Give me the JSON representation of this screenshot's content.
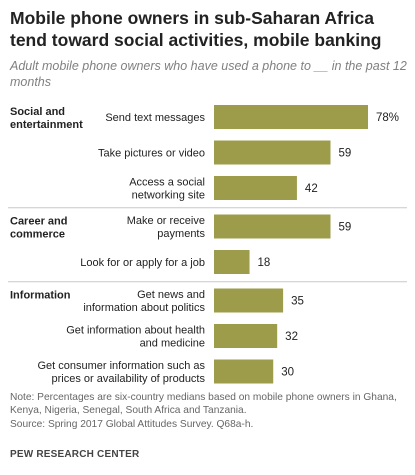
{
  "title": "Mobile phone owners in sub-Saharan Africa tend toward social activities, mobile banking",
  "subtitle": "Adult mobile phone owners who have used a phone to __ in the past 12 months",
  "notes": {
    "line1": "Note: Percentages are six-country medians based on mobile phone owners in Ghana,",
    "line2": "Kenya, Nigeria, Senegal, South Africa and Tanzania.",
    "source": "Source: Spring 2017 Global Attitudes Survey. Q68a-h."
  },
  "footer": "PEW RESEARCH CENTER",
  "colors": {
    "bar": "#9c9c4a",
    "divider": "#c8c8c8"
  },
  "chart_data": {
    "type": "bar",
    "orientation": "horizontal",
    "value_suffix_first": "%",
    "xlim": [
      0,
      78
    ],
    "groups": [
      {
        "name": [
          "Social and",
          "entertainment"
        ],
        "items": [
          {
            "label": [
              "Send text messages"
            ],
            "value": 78
          },
          {
            "label": [
              "Take pictures or video"
            ],
            "value": 59
          },
          {
            "label": [
              "Access a social",
              "networking site"
            ],
            "value": 42
          }
        ]
      },
      {
        "name": [
          "Career and",
          "commerce"
        ],
        "items": [
          {
            "label": [
              "Make or receive",
              "payments"
            ],
            "value": 59
          },
          {
            "label": [
              "Look for or apply for a job"
            ],
            "value": 18
          }
        ]
      },
      {
        "name": [
          "Information"
        ],
        "items": [
          {
            "label": [
              "Get news and",
              "information about politics"
            ],
            "value": 35
          },
          {
            "label": [
              "Get information about health",
              "and medicine"
            ],
            "value": 32
          },
          {
            "label": [
              "Get consumer information such as",
              "prices or availability of products"
            ],
            "value": 30
          }
        ]
      }
    ]
  }
}
